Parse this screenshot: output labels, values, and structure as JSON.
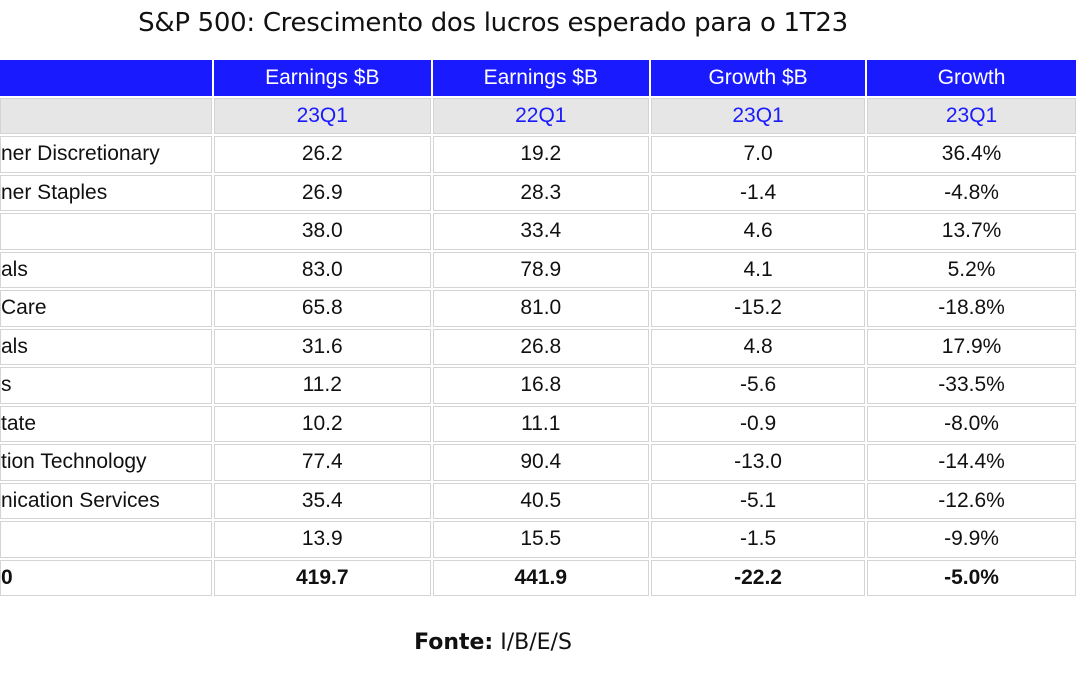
{
  "title": "S&P 500: Crescimento dos lucros esperado para o 1T23",
  "table": {
    "header": [
      "Earnings $B",
      "Earnings $B",
      "Growth $B",
      "Growth"
    ],
    "subheader": [
      "23Q1",
      "22Q1",
      "23Q1",
      "23Q1"
    ],
    "rows": [
      [
        "ner Discretionary",
        "26.2",
        "19.2",
        "7.0",
        "36.4%"
      ],
      [
        "ner Staples",
        "26.9",
        "28.3",
        "-1.4",
        "-4.8%"
      ],
      [
        null,
        "38.0",
        "33.4",
        "4.6",
        "13.7%"
      ],
      [
        "als",
        "83.0",
        "78.9",
        "4.1",
        "5.2%"
      ],
      [
        "Care",
        "65.8",
        "81.0",
        "-15.2",
        "-18.8%"
      ],
      [
        "als",
        "31.6",
        "26.8",
        "4.8",
        "17.9%"
      ],
      [
        "s",
        "11.2",
        "16.8",
        "-5.6",
        "-33.5%"
      ],
      [
        "tate",
        "10.2",
        "11.1",
        "-0.9",
        "-8.0%"
      ],
      [
        "tion Technology",
        "77.4",
        "90.4",
        "-13.0",
        "-14.4%"
      ],
      [
        "nication Services",
        "35.4",
        "40.5",
        "-5.1",
        "-12.6%"
      ],
      [
        null,
        "13.9",
        "15.5",
        "-1.5",
        "-9.9%"
      ],
      [
        "0",
        "419.7",
        "441.9",
        "-22.2",
        "-5.0%"
      ]
    ]
  },
  "footer": {
    "label": "Fonte:",
    "source": "I/B/E/S"
  }
}
